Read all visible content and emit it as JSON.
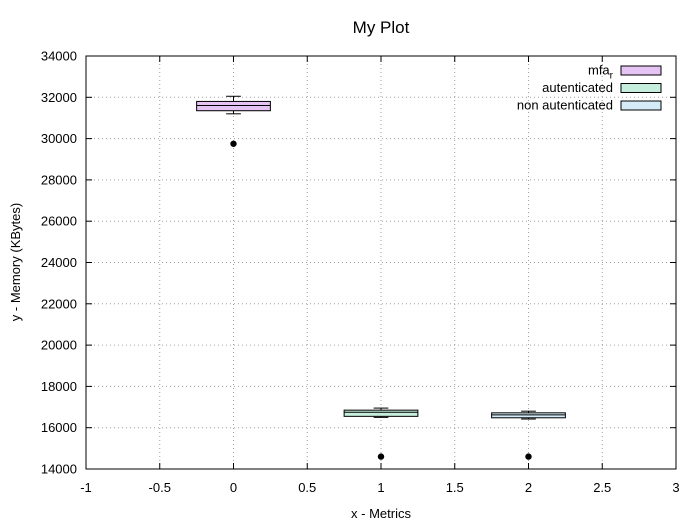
{
  "chart_data": {
    "type": "box",
    "title": "My Plot",
    "xlabel": "x - Metrics",
    "ylabel": "y - Memory (KBytes)",
    "xlim": [
      -1,
      3
    ],
    "ylim": [
      14000,
      34000
    ],
    "xticks": [
      -1,
      -0.5,
      0,
      0.5,
      1,
      1.5,
      2,
      2.5,
      3
    ],
    "xtick_labels": [
      "-1",
      "-0.5",
      "0",
      "0.5",
      "1",
      "1.5",
      "2",
      "2.5",
      "3"
    ],
    "yticks": [
      14000,
      16000,
      18000,
      20000,
      22000,
      24000,
      26000,
      28000,
      30000,
      32000,
      34000
    ],
    "ytick_labels": [
      "14000",
      "16000",
      "18000",
      "20000",
      "22000",
      "24000",
      "26000",
      "28000",
      "30000",
      "32000",
      "34000"
    ],
    "grid": true,
    "legend_position": "top-right",
    "box_half_width": 0.25,
    "cap_half_width": 0.05,
    "series": [
      {
        "name_base": "mfa",
        "name_sub": "r",
        "x": 0,
        "whisker_low": 31200,
        "q1": 31350,
        "median": 31600,
        "q3": 31800,
        "whisker_high": 32050,
        "outliers": [
          29750
        ],
        "color": "#e6c3f5"
      },
      {
        "name_base": "autenticated",
        "name_sub": "",
        "x": 1,
        "whisker_low": 16500,
        "q1": 16550,
        "median": 16750,
        "q3": 16850,
        "whisker_high": 16950,
        "outliers": [
          14600
        ],
        "color": "#c6eedd"
      },
      {
        "name_base": "non autenticated",
        "name_sub": "",
        "x": 2,
        "whisker_low": 16420,
        "q1": 16480,
        "median": 16620,
        "q3": 16720,
        "whisker_high": 16800,
        "outliers": [
          14600
        ],
        "color": "#d5ecf8"
      }
    ]
  }
}
